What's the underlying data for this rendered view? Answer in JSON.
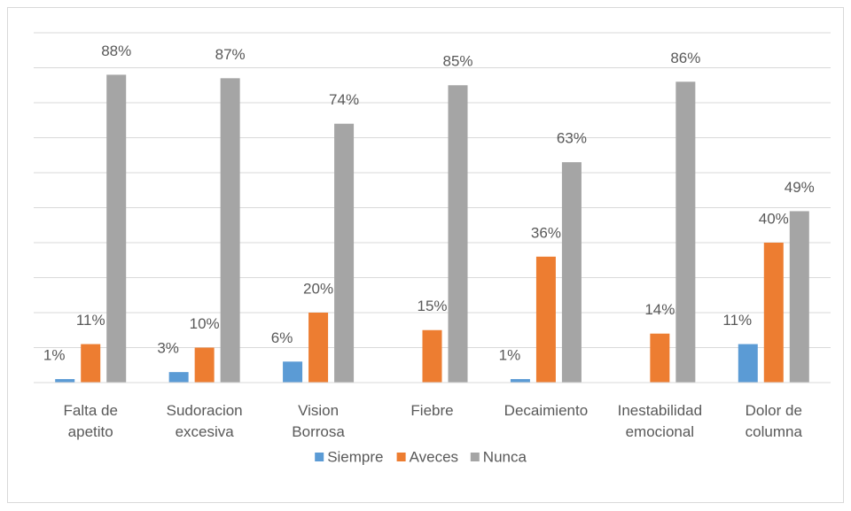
{
  "chart_data": {
    "type": "bar",
    "categories": [
      "Falta de\napetito",
      "Sudoracion\nexcesiva",
      "Vision\nBorrosa",
      "Fiebre",
      "Decaimiento",
      "Inestabilidad\nemocional",
      "Dolor de\ncolumna"
    ],
    "series": [
      {
        "name": "Siempre",
        "color": "#5b9bd5",
        "values": [
          1,
          3,
          6,
          null,
          1,
          null,
          11
        ],
        "value_labels": [
          "1%",
          "3%",
          "6%",
          null,
          "1%",
          null,
          "11%"
        ]
      },
      {
        "name": "Aveces",
        "color": "#ed7d31",
        "values": [
          11,
          10,
          20,
          15,
          36,
          14,
          40
        ],
        "value_labels": [
          "11%",
          "10%",
          "20%",
          "15%",
          "36%",
          "14%",
          "40%"
        ]
      },
      {
        "name": "Nunca",
        "color": "#a5a5a5",
        "values": [
          88,
          87,
          74,
          85,
          63,
          86,
          49
        ],
        "value_labels": [
          "88%",
          "87%",
          "74%",
          "85%",
          "63%",
          "86%",
          "49%"
        ]
      }
    ],
    "ylim": [
      0,
      100
    ],
    "yticks": [
      0,
      10,
      20,
      30,
      40,
      50,
      60,
      70,
      80,
      90,
      100
    ],
    "grid": true,
    "legend": "bottom"
  }
}
